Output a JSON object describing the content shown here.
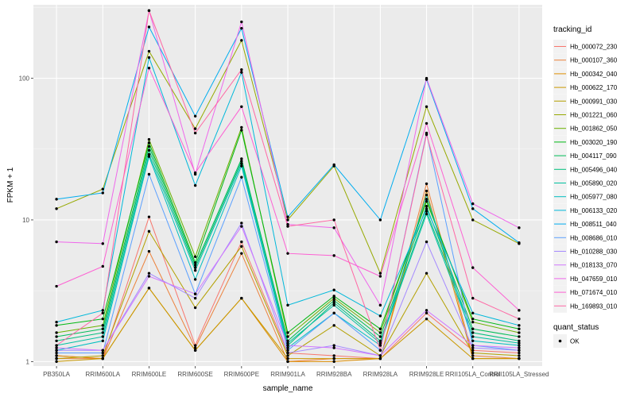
{
  "chart_data": {
    "type": "line",
    "xlabel": "sample_name",
    "ylabel": "FPKM + 1",
    "y_scale": "log10",
    "ylim": [
      0.93,
      330
    ],
    "y_ticks": [
      {
        "value": 1,
        "label": "1"
      },
      {
        "value": 10,
        "label": "10"
      },
      {
        "value": 100,
        "label": "100"
      }
    ],
    "grid": true,
    "legend_placement": "right",
    "categories": [
      "PB350LA",
      "RRIM600LA",
      "RRIM600LE",
      "RRIM600SE",
      "RRIM600PE",
      "RRIM901LA",
      "RRIM928BA",
      "RRIM928LA",
      "RRIM928LE",
      "RRII105LA_Control",
      "RRII105LA_Stressed"
    ],
    "legend_color_title": "tracking_id",
    "legend_shape_title": "quant_status",
    "legend_shape_items": [
      "OK"
    ],
    "series": [
      {
        "name": "Hb_000072_230",
        "color": "#F8766D",
        "values": [
          1.1,
          1.05,
          10.5,
          1.3,
          7.0,
          1.15,
          1.1,
          1.05,
          2.2,
          1.2,
          1.15
        ]
      },
      {
        "name": "Hb_000107_360",
        "color": "#EC823C",
        "values": [
          1.05,
          1.05,
          6.0,
          1.25,
          5.8,
          1.0,
          1.05,
          1.05,
          18.0,
          1.1,
          1.05
        ]
      },
      {
        "name": "Hb_000342_040",
        "color": "#DD8D00",
        "values": [
          1.1,
          1.05,
          3.3,
          1.2,
          2.8,
          1.0,
          1.0,
          1.05,
          16.0,
          1.05,
          1.05
        ]
      },
      {
        "name": "Hb_000622_170",
        "color": "#C99800",
        "values": [
          1.0,
          1.05,
          3.3,
          1.2,
          2.8,
          1.05,
          1.05,
          1.05,
          2.0,
          1.05,
          1.05
        ]
      },
      {
        "name": "Hb_000991_030",
        "color": "#B3A000",
        "values": [
          1.05,
          1.1,
          8.3,
          2.4,
          6.5,
          1.1,
          1.8,
          1.1,
          4.2,
          1.15,
          1.1
        ]
      },
      {
        "name": "Hb_001221_060",
        "color": "#96A900",
        "values": [
          12.0,
          16.5,
          155.0,
          44.0,
          185.0,
          10.0,
          24.0,
          4.2,
          63.0,
          10.0,
          6.8
        ]
      },
      {
        "name": "Hb_001862_050",
        "color": "#6BB100",
        "values": [
          1.6,
          1.8,
          37.0,
          5.5,
          45.0,
          1.5,
          2.8,
          1.6,
          14.0,
          1.9,
          1.6
        ]
      },
      {
        "name": "Hb_003020_190",
        "color": "#00B813",
        "values": [
          1.8,
          2.0,
          35.0,
          5.0,
          43.0,
          1.6,
          2.9,
          1.7,
          13.5,
          2.0,
          1.7
        ]
      },
      {
        "name": "Hb_004117_090",
        "color": "#00BC56",
        "values": [
          1.5,
          1.7,
          33.0,
          4.8,
          27.0,
          1.4,
          2.7,
          1.5,
          12.5,
          1.7,
          1.5
        ]
      },
      {
        "name": "Hb_005496_040",
        "color": "#00BF7D",
        "values": [
          1.4,
          1.6,
          31.0,
          4.6,
          26.0,
          1.3,
          2.6,
          1.4,
          11.5,
          1.6,
          1.4
        ]
      },
      {
        "name": "Hb_005890_020",
        "color": "#00C0A0",
        "values": [
          1.3,
          1.5,
          29.0,
          4.4,
          25.0,
          1.35,
          2.5,
          1.35,
          11.0,
          1.5,
          1.35
        ]
      },
      {
        "name": "Hb_005977_080",
        "color": "#00BEC0",
        "values": [
          1.2,
          1.4,
          28.0,
          3.8,
          24.0,
          1.25,
          2.2,
          1.3,
          15.0,
          1.4,
          1.3
        ]
      },
      {
        "name": "Hb_006133_020",
        "color": "#00B8DA",
        "values": [
          1.9,
          2.3,
          140.0,
          17.5,
          110.0,
          2.5,
          3.2,
          2.1,
          12.0,
          2.2,
          1.8
        ]
      },
      {
        "name": "Hb_008511_040",
        "color": "#00ADEF",
        "values": [
          14.0,
          15.5,
          230.0,
          54.0,
          225.0,
          10.5,
          24.5,
          10.0,
          98.0,
          12.0,
          6.9
        ]
      },
      {
        "name": "Hb_008686_010",
        "color": "#5BA0FF",
        "values": [
          1.15,
          1.15,
          21.0,
          3.0,
          20.0,
          1.2,
          2.2,
          1.2,
          41.0,
          1.3,
          1.2
        ]
      },
      {
        "name": "Hb_010288_030",
        "color": "#A58AFF",
        "values": [
          1.2,
          1.2,
          4.2,
          2.8,
          9.5,
          1.15,
          1.3,
          1.1,
          7.0,
          1.25,
          1.2
        ]
      },
      {
        "name": "Hb_018133_070",
        "color": "#D177FF",
        "values": [
          1.25,
          1.2,
          4.0,
          3.0,
          9.0,
          1.3,
          1.25,
          1.1,
          2.3,
          1.3,
          1.25
        ]
      },
      {
        "name": "Hb_047659_010",
        "color": "#EF67EB",
        "values": [
          7.0,
          6.8,
          300.0,
          21.0,
          250.0,
          9.3,
          8.8,
          2.5,
          100.0,
          13.0,
          8.8
        ]
      },
      {
        "name": "Hb_071674_010",
        "color": "#FD61D3",
        "values": [
          3.4,
          4.7,
          118.0,
          21.5,
          63.0,
          5.8,
          5.6,
          4.0,
          48.0,
          4.6,
          2.3
        ]
      },
      {
        "name": "Hb_169893_010",
        "color": "#FF67A4",
        "values": [
          1.3,
          2.2,
          300.0,
          41.0,
          115.0,
          9.0,
          10.0,
          1.2,
          40.0,
          2.8,
          2.0
        ]
      }
    ]
  }
}
